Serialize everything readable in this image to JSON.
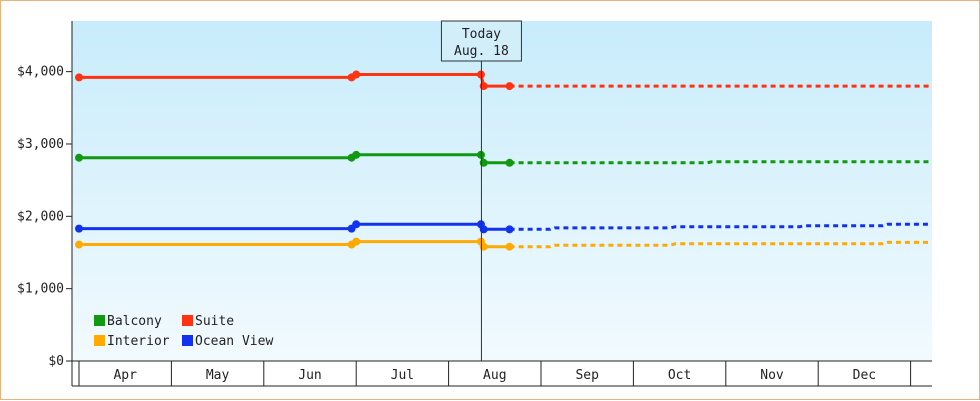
{
  "chart_data": {
    "type": "line",
    "title": "",
    "xlabel": "",
    "ylabel": "",
    "ylim": [
      0,
      4700
    ],
    "yticks": [
      0,
      1000,
      2000,
      3000,
      4000
    ],
    "ytick_labels": [
      "$0",
      "$1,000",
      "$2,000",
      "$3,000",
      "$4,000"
    ],
    "xticks": [
      "Apr",
      "May",
      "Jun",
      "Jul",
      "Aug",
      "Sep",
      "Oct",
      "Nov",
      "Dec"
    ],
    "today": {
      "line1": "Today",
      "line2": "Aug. 18",
      "x": 4.35
    },
    "legend": {
      "position": "bottom-left",
      "columns": 2
    },
    "series": [
      {
        "name": "Balcony",
        "color": "#119911",
        "actual": [
          [
            0.0,
            2810
          ],
          [
            2.95,
            2810
          ],
          [
            3.0,
            2850
          ],
          [
            4.35,
            2850
          ],
          [
            4.38,
            2740
          ],
          [
            4.66,
            2740
          ]
        ],
        "projected": [
          [
            4.66,
            2740
          ],
          [
            6.8,
            2740
          ],
          [
            6.85,
            2755
          ],
          [
            9.2,
            2755
          ]
        ]
      },
      {
        "name": "Suite",
        "color": "#ff3311",
        "actual": [
          [
            0.0,
            3920
          ],
          [
            2.95,
            3920
          ],
          [
            3.0,
            3960
          ],
          [
            4.35,
            3960
          ],
          [
            4.38,
            3800
          ],
          [
            4.66,
            3800
          ]
        ],
        "projected": [
          [
            4.66,
            3800
          ],
          [
            9.2,
            3800
          ]
        ]
      },
      {
        "name": "Interior",
        "color": "#ffaa00",
        "actual": [
          [
            0.0,
            1610
          ],
          [
            2.95,
            1610
          ],
          [
            3.0,
            1650
          ],
          [
            4.35,
            1650
          ],
          [
            4.38,
            1580
          ],
          [
            4.66,
            1580
          ]
        ],
        "projected": [
          [
            4.66,
            1580
          ],
          [
            5.1,
            1580
          ],
          [
            5.15,
            1600
          ],
          [
            6.4,
            1600
          ],
          [
            6.45,
            1620
          ],
          [
            8.7,
            1620
          ],
          [
            8.75,
            1640
          ],
          [
            9.2,
            1640
          ]
        ]
      },
      {
        "name": "Ocean View",
        "color": "#1133ee",
        "actual": [
          [
            0.0,
            1830
          ],
          [
            2.95,
            1830
          ],
          [
            3.0,
            1890
          ],
          [
            4.35,
            1890
          ],
          [
            4.38,
            1820
          ],
          [
            4.66,
            1820
          ]
        ],
        "projected": [
          [
            4.66,
            1820
          ],
          [
            5.1,
            1820
          ],
          [
            5.15,
            1840
          ],
          [
            6.4,
            1840
          ],
          [
            6.45,
            1855
          ],
          [
            7.8,
            1855
          ],
          [
            7.85,
            1870
          ],
          [
            8.7,
            1870
          ],
          [
            8.75,
            1890
          ],
          [
            9.2,
            1890
          ]
        ]
      }
    ]
  }
}
